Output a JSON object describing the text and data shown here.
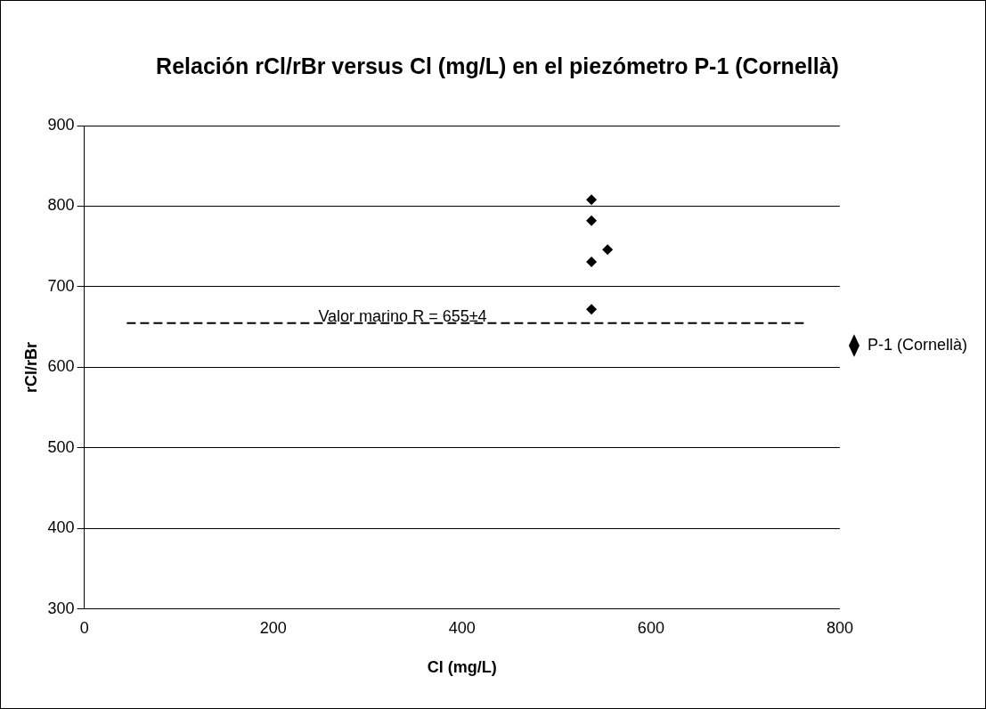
{
  "chart_data": {
    "type": "scatter",
    "title": "Relación rCl/rBr versus Cl (mg/L) en el piezómetro P-1 (Cornellà)",
    "xlabel": "Cl (mg/L)",
    "ylabel": "rCl/rBr",
    "series": [
      {
        "name": "P-1 (Cornellà)",
        "color": "#000000",
        "marker": "diamond",
        "x": [
          537,
          537,
          537,
          554,
          537
        ],
        "values": [
          808,
          782,
          731,
          746,
          672
        ]
      },
      {
        "type": "line",
        "color": "#000000",
        "line_style": "dashed",
        "marker": "none",
        "x": [
          45,
          763
        ],
        "values": [
          655,
          655
        ]
      }
    ],
    "annotations": [
      {
        "text": "Valor marino R = 655±4",
        "x": 337,
        "y": 655
      }
    ],
    "xlim": [
      0,
      800
    ],
    "xticks": [
      0,
      200,
      400,
      600,
      800
    ],
    "ylim": [
      300,
      900
    ],
    "yticks": [
      300,
      400,
      500,
      600,
      700,
      800,
      900
    ],
    "grid": "y",
    "legend": "right"
  }
}
